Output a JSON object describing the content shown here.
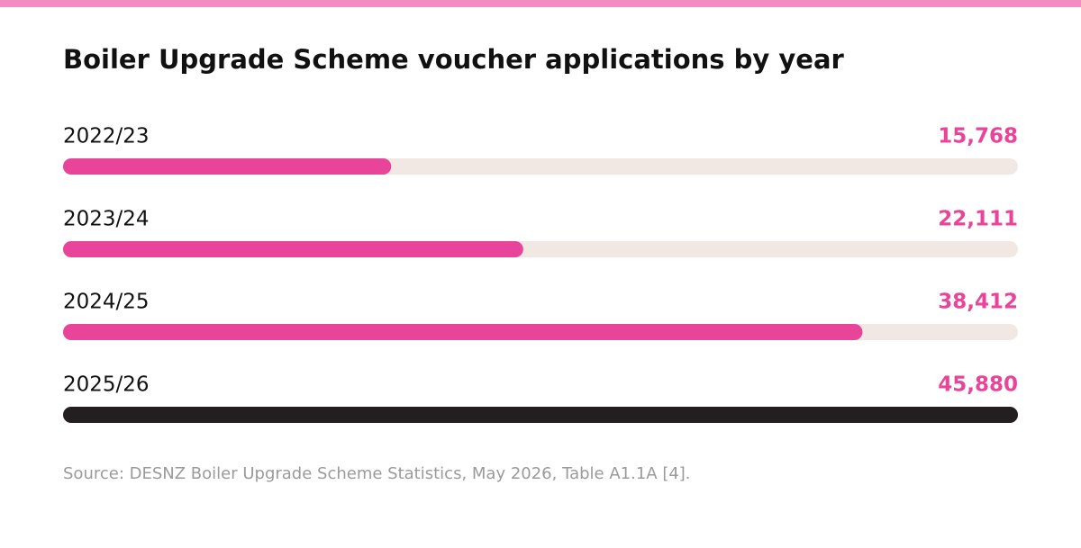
{
  "chart_data": {
    "type": "hbar",
    "title": "Boiler Upgrade Scheme voucher applications by year",
    "categories": [
      "2022/23",
      "2023/24",
      "2024/25",
      "2025/26"
    ],
    "values": [
      15768,
      22111,
      38412,
      45880
    ],
    "value_labels": [
      "15,768",
      "22,111",
      "38,412",
      "45,880"
    ],
    "colors": [
      "#e8459a",
      "#e8459a",
      "#e8459a",
      "#231f20"
    ],
    "value_label_color": "#e8459a",
    "track_color": "#f1e8e3",
    "xlim": [
      0,
      45880
    ],
    "source": "Source: DESNZ Boiler Upgrade Scheme Statistics, May 2026, Table A1.1A [4]."
  }
}
